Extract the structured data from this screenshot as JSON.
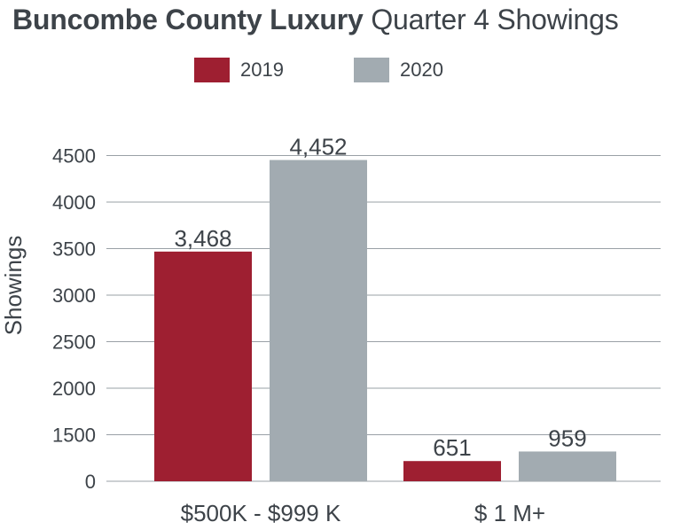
{
  "chart_data": {
    "type": "bar",
    "title": {
      "bold": "Buncombe County Luxury",
      "regular": "Quarter 4 Showings"
    },
    "ylabel": "Showings",
    "xlabel": "",
    "categories": [
      "$500K - $999 K",
      "$ 1 M+"
    ],
    "series": [
      {
        "name": "2019",
        "color": "#9e1f31",
        "values": [
          3468,
          651
        ],
        "labels": [
          "3,468",
          "651"
        ]
      },
      {
        "name": "2020",
        "color": "#a2abb1",
        "values": [
          4452,
          959
        ],
        "labels": [
          "4,452",
          "959"
        ]
      }
    ],
    "yticks": [
      {
        "value": 0,
        "label": "0"
      },
      {
        "value": 1500,
        "label": "1500"
      },
      {
        "value": 2000,
        "label": "2000"
      },
      {
        "value": 2500,
        "label": "2500"
      },
      {
        "value": 3000,
        "label": "3000"
      },
      {
        "value": 3500,
        "label": "3500"
      },
      {
        "value": 4000,
        "label": "4000"
      },
      {
        "value": 4500,
        "label": "4500"
      }
    ],
    "legend_position": "top-center",
    "grid": true
  }
}
